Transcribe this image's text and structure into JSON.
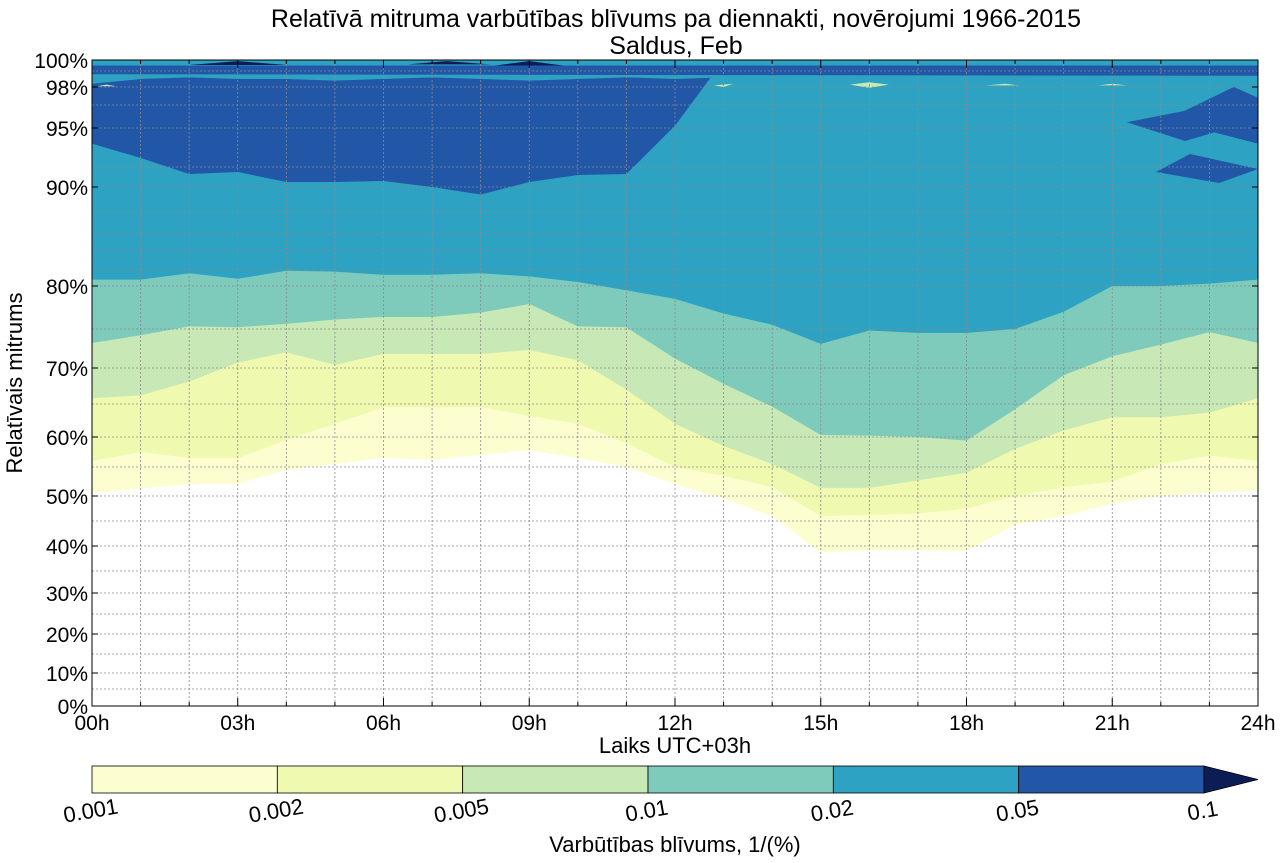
{
  "chart_data": {
    "type": "contour",
    "title": "Relatīvā mitruma varbūtības blīvums pa diennakti, novērojumi 1966-2015",
    "subtitle": "Saldus, Feb",
    "xlabel": "Laiks UTC+03h",
    "ylabel": "Relatīvais mitrums",
    "xlim": [
      0,
      24
    ],
    "x_ticks": [
      0,
      3,
      6,
      9,
      12,
      15,
      18,
      21,
      24
    ],
    "x_tick_labels": [
      "00h",
      "03h",
      "06h",
      "09h",
      "12h",
      "15h",
      "18h",
      "21h",
      "24h"
    ],
    "x_minor_step": 1,
    "y_ticks": [
      0,
      10,
      20,
      30,
      40,
      50,
      60,
      70,
      80,
      90,
      95,
      98,
      100
    ],
    "y_tick_labels": [
      "0%",
      "10%",
      "20%",
      "30%",
      "40%",
      "50%",
      "60%",
      "70%",
      "80%",
      "90%",
      "95%",
      "98%",
      "100%"
    ],
    "y_minor_lines": [
      5,
      15,
      25,
      35,
      45,
      55,
      65,
      75,
      82,
      84,
      86,
      88,
      92,
      97,
      99
    ],
    "grid": true,
    "colorbar": {
      "label": "Varbūtības blīvums, 1/(%)",
      "levels": [
        0.001,
        0.002,
        0.005,
        0.01,
        0.02,
        0.05,
        0.1
      ],
      "level_labels": [
        "0.001",
        "0.002",
        "0.005",
        "0.01",
        "0.02",
        "0.05",
        "0.1"
      ],
      "colors": [
        "#fdfed0",
        "#eff9b0",
        "#c8e9b6",
        "#7ecbbb",
        "#2da2c2",
        "#2157a6",
        "#0c1d55"
      ],
      "extend": "max"
    },
    "hours": [
      0,
      1,
      2,
      3,
      4,
      5,
      6,
      7,
      8,
      9,
      10,
      11,
      12,
      13,
      14,
      15,
      16,
      17,
      18,
      19,
      20,
      21,
      22,
      23,
      24
    ],
    "contour_boundaries": [
      {
        "level": 0.001,
        "rh": [
          50.5,
          51.3,
          52,
          52.1,
          54.5,
          55.5,
          56.5,
          56.2,
          57,
          57.8,
          56.5,
          55,
          52,
          49.5,
          46,
          38.7,
          39.2,
          39.2,
          39,
          44.2,
          46,
          48.5,
          50,
          50.6,
          51
        ]
      },
      {
        "level": 0.002,
        "rh": [
          56,
          57.5,
          56.5,
          56.5,
          59.5,
          62,
          64.5,
          64.5,
          64.5,
          63.2,
          62,
          59,
          55,
          53.5,
          51.5,
          46,
          46.2,
          46.5,
          47.5,
          50,
          51.5,
          52.5,
          55.5,
          56.9,
          56
        ]
      },
      {
        "level": 0.005,
        "rh": [
          65.8,
          66.2,
          68.1,
          70.7,
          72,
          70.4,
          71.8,
          71.8,
          71.8,
          72.3,
          71,
          67,
          62,
          58.5,
          55.5,
          51.4,
          51.4,
          52.7,
          54,
          58,
          61,
          63,
          63,
          63.7,
          65.8
        ]
      },
      {
        "level": 0.01,
        "rh": [
          73.2,
          74.2,
          75.3,
          75.2,
          75.6,
          76.1,
          76.4,
          76.4,
          76.9,
          77.9,
          75.3,
          75.2,
          71.2,
          67.8,
          64.6,
          60.3,
          60.2,
          60,
          59.4,
          64.2,
          69,
          71.5,
          73,
          74.6,
          73.2
        ]
      },
      {
        "level": 0.02,
        "rh": [
          80.8,
          80.8,
          81.6,
          80.9,
          81.9,
          81.8,
          81.4,
          81.4,
          81.6,
          81.2,
          80.5,
          79.5,
          78.5,
          76.8,
          75.5,
          73.1,
          74.8,
          74.5,
          74.5,
          75,
          77,
          80,
          80,
          80.3,
          80.8
        ]
      },
      {
        "level": 0.05,
        "rh": [
          93.8,
          92.7,
          91.3,
          91.5,
          90.5,
          90.5,
          90.6,
          90,
          89.4,
          90.5,
          91.2,
          91.3,
          95.2,
          100,
          100,
          100,
          100,
          100,
          100,
          100,
          100,
          100,
          100,
          100,
          100
        ]
      }
    ],
    "top_band": {
      "level_floor": 0.02,
      "rh": [
        98.2,
        98.5,
        98.6,
        98.5,
        98.5,
        98.4,
        98.5,
        98.6,
        98.5,
        98.4,
        98.5,
        98.6,
        98.5,
        98.6,
        98.5,
        98.4,
        98.5,
        98.6,
        98.5,
        98.6,
        98.5,
        98.5,
        98.6,
        98.5,
        98.6
      ]
    },
    "dense_patches": [
      {
        "level": 0.05,
        "points": [
          [
            0,
            99.5
          ],
          [
            24,
            99.5
          ],
          [
            24,
            98.7
          ],
          [
            0,
            98.8
          ]
        ]
      },
      {
        "level": 0.1,
        "points": [
          [
            2,
            99.55
          ],
          [
            3,
            99.9
          ],
          [
            4,
            99.55
          ]
        ]
      },
      {
        "level": 0.1,
        "points": [
          [
            6.5,
            99.6
          ],
          [
            7.3,
            99.9
          ],
          [
            8.2,
            99.6
          ]
        ]
      },
      {
        "level": 0.1,
        "points": [
          [
            8.3,
            99.5
          ],
          [
            9,
            99.9
          ],
          [
            9.7,
            99.5
          ]
        ]
      },
      {
        "level": 0.05,
        "points": [
          [
            21.3,
            95.5
          ],
          [
            22.5,
            96.5
          ],
          [
            23.8,
            95.5
          ],
          [
            22.5,
            94
          ]
        ]
      },
      {
        "level": 0.05,
        "points": [
          [
            22.1,
            95.7
          ],
          [
            23.5,
            98
          ],
          [
            24,
            97.4
          ],
          [
            24,
            93.8
          ]
        ]
      },
      {
        "level": 0.05,
        "points": [
          [
            21.9,
            91.5
          ],
          [
            22.6,
            93
          ],
          [
            24,
            91.8
          ],
          [
            23.2,
            90.4
          ]
        ]
      },
      {
        "level": 0.005,
        "points": [
          [
            12.8,
            98.1
          ],
          [
            13.2,
            98.2
          ],
          [
            13,
            98.0
          ]
        ]
      },
      {
        "level": 0.005,
        "points": [
          [
            15.6,
            98.15
          ],
          [
            16,
            98.3
          ],
          [
            16.4,
            98.15
          ],
          [
            16,
            97.95
          ]
        ]
      },
      {
        "level": 0.005,
        "points": [
          [
            18.4,
            98.1
          ],
          [
            18.8,
            98.2
          ],
          [
            19.1,
            98.1
          ]
        ]
      },
      {
        "level": 0.005,
        "points": [
          [
            20.7,
            98.1
          ],
          [
            21,
            98.2
          ],
          [
            21.3,
            98.1
          ]
        ]
      },
      {
        "level": 0.005,
        "points": [
          [
            0.1,
            98.05
          ],
          [
            0.3,
            98.15
          ],
          [
            0.5,
            98.05
          ]
        ]
      }
    ]
  }
}
